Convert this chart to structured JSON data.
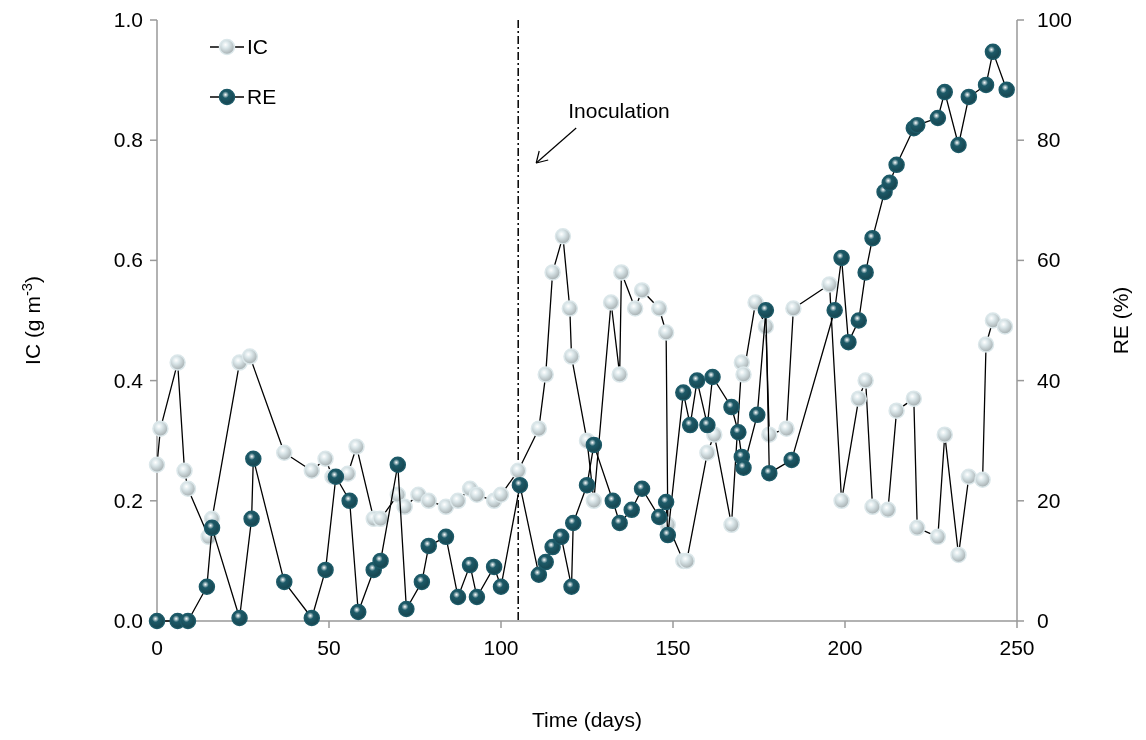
{
  "chart_data": {
    "type": "line",
    "xlabel": "Time (days)",
    "ylabel": "IC (g m$^{-3}$)",
    "y2label": "RE (%)",
    "xlim": [
      0,
      250
    ],
    "xticks": [
      0,
      50,
      100,
      150,
      200,
      250
    ],
    "ylim": [
      0,
      1
    ],
    "yticks": [
      {
        "value": 0,
        "label": "0.0"
      },
      0.2,
      0.4,
      0.6,
      0.8,
      {
        "value": 1,
        "label": "1.0"
      }
    ],
    "y2lim": [
      0,
      100
    ],
    "y2ticks": [
      0,
      20,
      40,
      60,
      80,
      100
    ],
    "marker": "circle",
    "legend": "top left",
    "grid": false,
    "ref_lines": [
      {
        "axis": "x",
        "value": 105,
        "label": "Inoculation"
      }
    ],
    "series": [
      {
        "name": "IC",
        "color": "#dbe7ea",
        "x": [
          0,
          1,
          6,
          8,
          9,
          15,
          16,
          24,
          27,
          37,
          45,
          49,
          51,
          55.5,
          58,
          63,
          65,
          70,
          72,
          76,
          79,
          84,
          87.5,
          91,
          93,
          98,
          100,
          105,
          111,
          113,
          115,
          118,
          120,
          120.5,
          125,
          127,
          132,
          134.5,
          135,
          139,
          141,
          146,
          148,
          148.5,
          153,
          154,
          160,
          162,
          167,
          170,
          170.5,
          174,
          177,
          178,
          183,
          185,
          195.5,
          199,
          204,
          206,
          208,
          212.5,
          215,
          220,
          221,
          227,
          229,
          233,
          236,
          240,
          241,
          243,
          246.5
        ],
        "values": [
          0.26,
          0.32,
          0.43,
          0.25,
          0.22,
          0.14,
          0.17,
          0.43,
          0.44,
          0.28,
          0.25,
          0.27,
          0.24,
          0.245,
          0.29,
          0.17,
          0.17,
          0.21,
          0.19,
          0.21,
          0.2,
          0.19,
          0.2,
          0.22,
          0.21,
          0.2,
          0.21,
          0.25,
          0.32,
          0.41,
          0.58,
          0.64,
          0.52,
          0.44,
          0.3,
          0.2,
          0.53,
          0.41,
          0.58,
          0.52,
          0.55,
          0.52,
          0.48,
          0.16,
          0.1,
          0.1,
          0.28,
          0.31,
          0.16,
          0.43,
          0.41,
          0.53,
          0.49,
          0.31,
          0.32,
          0.52,
          0.56,
          0.2,
          0.37,
          0.4,
          0.19,
          0.185,
          0.35,
          0.37,
          0.155,
          0.14,
          0.31,
          0.11,
          0.24,
          0.235,
          0.46,
          0.5,
          0.49
        ]
      },
      {
        "name": "RE",
        "color": "#1d5a68",
        "axis": "y2",
        "x": [
          0,
          6,
          9,
          14.5,
          16,
          24,
          27.5,
          28,
          37,
          45,
          49,
          52,
          56,
          58.5,
          63,
          65,
          70,
          72.5,
          77,
          79,
          84,
          87.5,
          91,
          93,
          98,
          100,
          105.5,
          111,
          113,
          115,
          117.5,
          120.5,
          121,
          125,
          127,
          132.5,
          134.5,
          138,
          141,
          146,
          148,
          148.5,
          153,
          155,
          157,
          160,
          161.5,
          167,
          169,
          170,
          170.5,
          174.5,
          177,
          178,
          184.5,
          197,
          199,
          201,
          204,
          206,
          208,
          211.5,
          213,
          215,
          220,
          221,
          227,
          229,
          233,
          236,
          241,
          243,
          247
        ],
        "values": [
          0,
          0,
          0,
          5.7,
          15.5,
          0.5,
          17,
          27,
          6.5,
          0.5,
          8.5,
          24,
          20,
          1.5,
          8.5,
          10,
          26,
          2,
          6.5,
          12.5,
          14,
          4,
          9.3,
          4,
          9,
          5.7,
          22.6,
          7.7,
          9.8,
          12.3,
          14,
          5.7,
          16.3,
          22.6,
          29.3,
          20,
          16.3,
          18.5,
          22,
          17.3,
          19.8,
          14.3,
          38,
          32.6,
          40,
          32.6,
          40.6,
          35.6,
          31.4,
          27.3,
          25.5,
          34.3,
          51.7,
          24.6,
          26.8,
          51.7,
          60.4,
          46.4,
          50,
          58,
          63.7,
          71.4,
          72.9,
          75.9,
          82,
          82.5,
          83.7,
          88,
          79.2,
          87.2,
          89.2,
          94.7,
          88.4
        ]
      }
    ]
  }
}
